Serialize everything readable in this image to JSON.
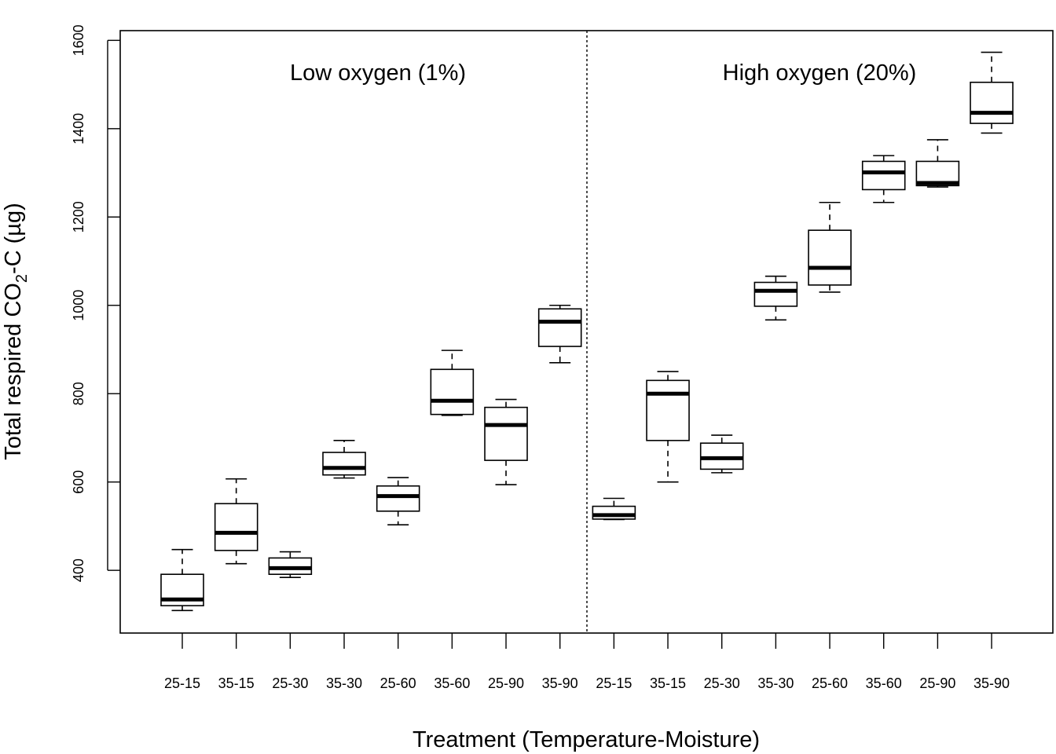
{
  "chart_data": {
    "type": "boxplot",
    "xlabel": "Treatment (Temperature-Moisture)",
    "ylabel_parts": {
      "pre": "Total respired CO",
      "sub": "2",
      "post": "-C (µg)"
    },
    "ylim": [
      258,
      1622
    ],
    "yticks": [
      400,
      600,
      800,
      1000,
      1200,
      1400,
      1600
    ],
    "grid": false,
    "groups": [
      {
        "label": "Low oxygen (1%)"
      },
      {
        "label": "High oxygen (20%)"
      }
    ],
    "categories": [
      "25-15",
      "35-15",
      "25-30",
      "35-30",
      "25-60",
      "35-60",
      "25-90",
      "35-90",
      "25-15",
      "35-15",
      "25-30",
      "35-30",
      "25-60",
      "35-60",
      "25-90",
      "35-90"
    ],
    "boxes": [
      {
        "whisker_low": 309,
        "q1": 320,
        "median": 334,
        "q3": 391,
        "whisker_high": 447
      },
      {
        "whisker_low": 415,
        "q1": 445,
        "median": 485,
        "q3": 551,
        "whisker_high": 607
      },
      {
        "whisker_low": 384,
        "q1": 391,
        "median": 405,
        "q3": 428,
        "whisker_high": 442
      },
      {
        "whisker_low": 609,
        "q1": 616,
        "median": 632,
        "q3": 667,
        "whisker_high": 694
      },
      {
        "whisker_low": 503,
        "q1": 534,
        "median": 568,
        "q3": 591,
        "whisker_high": 610
      },
      {
        "whisker_low": 751,
        "q1": 753,
        "median": 784,
        "q3": 855,
        "whisker_high": 898
      },
      {
        "whisker_low": 594,
        "q1": 649,
        "median": 729,
        "q3": 769,
        "whisker_high": 787
      },
      {
        "whisker_low": 870,
        "q1": 907,
        "median": 963,
        "q3": 992,
        "whisker_high": 1000
      },
      {
        "whisker_low": 515,
        "q1": 516,
        "median": 525,
        "q3": 545,
        "whisker_high": 563
      },
      {
        "whisker_low": 600,
        "q1": 694,
        "median": 800,
        "q3": 830,
        "whisker_high": 850
      },
      {
        "whisker_low": 621,
        "q1": 629,
        "median": 654,
        "q3": 688,
        "whisker_high": 706
      },
      {
        "whisker_low": 967,
        "q1": 998,
        "median": 1033,
        "q3": 1052,
        "whisker_high": 1066
      },
      {
        "whisker_low": 1030,
        "q1": 1046,
        "median": 1085,
        "q3": 1170,
        "whisker_high": 1233
      },
      {
        "whisker_low": 1233,
        "q1": 1262,
        "median": 1301,
        "q3": 1326,
        "whisker_high": 1339
      },
      {
        "whisker_low": 1268,
        "q1": 1271,
        "median": 1277,
        "q3": 1326,
        "whisker_high": 1375
      },
      {
        "whisker_low": 1390,
        "q1": 1412,
        "median": 1436,
        "q3": 1505,
        "whisker_high": 1573
      }
    ]
  }
}
